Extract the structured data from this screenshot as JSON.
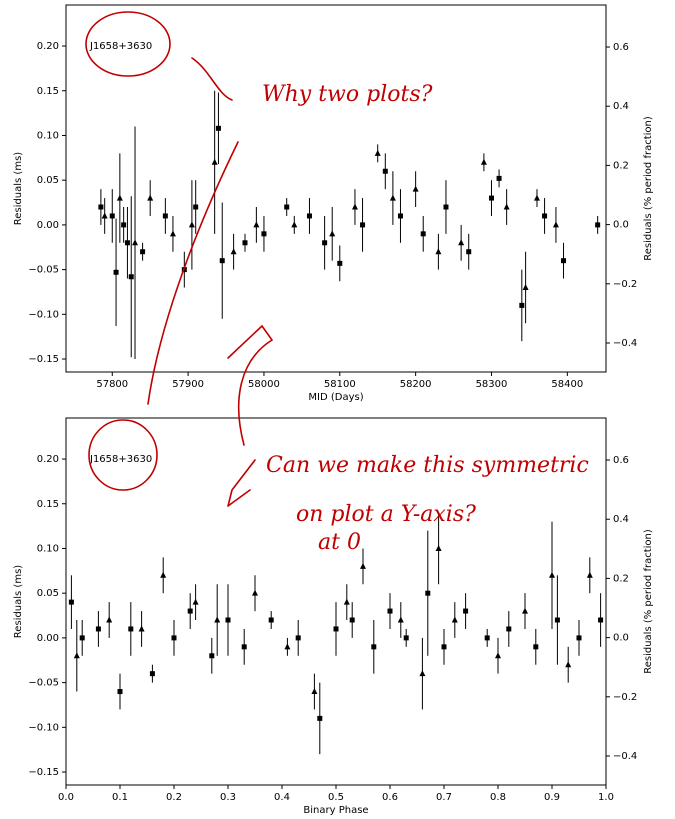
{
  "chart_data": [
    {
      "type": "scatter",
      "annotation": "J1658+3630",
      "xlabel": "MID (Days)",
      "ylabel": "Residuals (ms)",
      "y2label": "Residuals (% period fraction)",
      "xlim": [
        57739,
        58451
      ],
      "ylim": [
        -0.1645,
        0.2459
      ],
      "y2lim": [
        -0.498,
        0.742
      ],
      "xticks": [
        57800,
        57900,
        58000,
        58100,
        58200,
        58300,
        58400
      ],
      "yticks": [
        {
          "value": 0.2,
          "label": "0.20"
        },
        {
          "value": 0.15,
          "label": "0.15"
        },
        {
          "value": 0.1,
          "label": "0.10"
        },
        {
          "value": 0.05,
          "label": "0.05"
        },
        {
          "value": 0,
          "label": "0.00"
        },
        {
          "value": -0.05,
          "label": "−0.05"
        },
        {
          "value": -0.1,
          "label": "−0.10"
        },
        {
          "value": -0.15,
          "label": "−0.15"
        }
      ],
      "y2ticks": [
        {
          "value": 0.6,
          "label": "0.6"
        },
        {
          "value": 0.4,
          "label": "0.4"
        },
        {
          "value": 0.2,
          "label": "0.2"
        },
        {
          "value": 0,
          "label": "0.0"
        },
        {
          "value": -0.2,
          "label": "−0.2"
        },
        {
          "value": -0.4,
          "label": "−0.4"
        }
      ],
      "series": [
        {
          "marker": "square",
          "color": "#000000",
          "x": [
            57785,
            57800,
            57805,
            57815,
            57820,
            57825,
            57840,
            57870,
            57895,
            57910,
            57940,
            57945,
            57975,
            58000,
            58030,
            58060,
            58080,
            58100,
            58130,
            58160,
            58180,
            58210,
            58240,
            58270,
            58300,
            58310,
            58340,
            58370,
            58395,
            58440
          ],
          "values": [
            0.02,
            0.01,
            -0.053,
            0.0,
            -0.02,
            -0.058,
            -0.03,
            0.01,
            -0.05,
            0.02,
            0.108,
            -0.04,
            -0.02,
            -0.01,
            0.02,
            0.01,
            -0.02,
            -0.043,
            0.0,
            0.06,
            0.01,
            -0.01,
            0.02,
            -0.03,
            0.03,
            0.052,
            -0.09,
            0.01,
            -0.04,
            0.0
          ],
          "errors": [
            0.02,
            0.03,
            0.06,
            0.02,
            0.04,
            0.09,
            0.01,
            0.02,
            0.02,
            0.03,
            0.04,
            0.065,
            0.01,
            0.02,
            0.01,
            0.02,
            0.03,
            0.02,
            0.03,
            0.02,
            0.03,
            0.02,
            0.03,
            0.02,
            0.02,
            0.01,
            0.04,
            0.02,
            0.02,
            0.01
          ]
        },
        {
          "marker": "triangle",
          "color": "#000000",
          "x": [
            57790,
            57810,
            57830,
            57850,
            57880,
            57905,
            57935,
            57960,
            57990,
            58040,
            58090,
            58120,
            58150,
            58170,
            58200,
            58230,
            58260,
            58290,
            58320,
            58345,
            58360,
            58385
          ],
          "values": [
            0.01,
            0.03,
            -0.02,
            0.03,
            -0.01,
            0.0,
            0.07,
            -0.03,
            0.0,
            0.0,
            -0.01,
            0.02,
            0.08,
            0.03,
            0.04,
            -0.03,
            -0.02,
            0.07,
            0.02,
            -0.07,
            0.03,
            0.0
          ],
          "errors": [
            0.02,
            0.05,
            0.13,
            0.02,
            0.02,
            0.05,
            0.08,
            0.02,
            0.02,
            0.01,
            0.03,
            0.02,
            0.01,
            0.03,
            0.02,
            0.02,
            0.02,
            0.01,
            0.02,
            0.04,
            0.01,
            0.02
          ]
        }
      ]
    },
    {
      "type": "scatter",
      "annotation": "J1658+3630",
      "xlabel": "Binary Phase",
      "ylabel": "Residuals (ms)",
      "y2label": "Residuals (% period fraction)",
      "xlim": [
        0,
        1
      ],
      "ylim": [
        -0.1645,
        0.2459
      ],
      "y2lim": [
        -0.498,
        0.742
      ],
      "xticks": [
        {
          "value": 0,
          "label": "0.0"
        },
        0.1,
        0.2,
        0.3,
        0.4,
        0.5,
        0.6,
        0.7,
        0.8,
        0.9,
        {
          "value": 1,
          "label": "1.0"
        }
      ],
      "yticks": [
        {
          "value": 0.2,
          "label": "0.20"
        },
        {
          "value": 0.15,
          "label": "0.15"
        },
        {
          "value": 0.1,
          "label": "0.10"
        },
        {
          "value": 0.05,
          "label": "0.05"
        },
        {
          "value": 0,
          "label": "0.00"
        },
        {
          "value": -0.05,
          "label": "−0.05"
        },
        {
          "value": -0.1,
          "label": "−0.10"
        },
        {
          "value": -0.15,
          "label": "−0.15"
        }
      ],
      "y2ticks": [
        {
          "value": 0.6,
          "label": "0.6"
        },
        {
          "value": 0.4,
          "label": "0.4"
        },
        {
          "value": 0.2,
          "label": "0.2"
        },
        {
          "value": 0,
          "label": "0.0"
        },
        {
          "value": -0.2,
          "label": "−0.2"
        },
        {
          "value": -0.4,
          "label": "−0.4"
        }
      ],
      "series": [
        {
          "marker": "square",
          "color": "#000000",
          "x": [
            0.01,
            0.03,
            0.06,
            0.1,
            0.12,
            0.16,
            0.2,
            0.23,
            0.27,
            0.3,
            0.33,
            0.38,
            0.43,
            0.47,
            0.5,
            0.53,
            0.57,
            0.6,
            0.63,
            0.67,
            0.7,
            0.74,
            0.78,
            0.82,
            0.87,
            0.91,
            0.95,
            0.99
          ],
          "values": [
            0.04,
            0.0,
            0.01,
            -0.06,
            0.01,
            -0.04,
            0.0,
            0.03,
            -0.02,
            0.02,
            -0.01,
            0.02,
            0.0,
            -0.09,
            0.01,
            0.02,
            -0.01,
            0.03,
            0.0,
            0.05,
            -0.01,
            0.03,
            0.0,
            0.01,
            -0.01,
            0.02,
            0.0,
            0.02
          ],
          "errors": [
            0.03,
            0.02,
            0.02,
            0.02,
            0.03,
            0.01,
            0.02,
            0.02,
            0.02,
            0.04,
            0.02,
            0.01,
            0.02,
            0.04,
            0.03,
            0.02,
            0.03,
            0.02,
            0.01,
            0.07,
            0.02,
            0.02,
            0.01,
            0.02,
            0.02,
            0.05,
            0.02,
            0.03
          ]
        },
        {
          "marker": "triangle",
          "color": "#000000",
          "x": [
            0.02,
            0.08,
            0.14,
            0.18,
            0.24,
            0.28,
            0.35,
            0.41,
            0.46,
            0.52,
            0.55,
            0.62,
            0.66,
            0.69,
            0.72,
            0.8,
            0.85,
            0.9,
            0.93,
            0.97
          ],
          "values": [
            -0.02,
            0.02,
            0.01,
            0.07,
            0.04,
            0.02,
            0.05,
            -0.01,
            -0.06,
            0.04,
            0.08,
            0.02,
            -0.04,
            0.1,
            0.02,
            -0.02,
            0.03,
            0.07,
            -0.03,
            0.07
          ],
          "errors": [
            0.04,
            0.02,
            0.02,
            0.02,
            0.02,
            0.04,
            0.02,
            0.01,
            0.02,
            0.02,
            0.02,
            0.02,
            0.04,
            0.04,
            0.02,
            0.02,
            0.02,
            0.06,
            0.02,
            0.02
          ]
        }
      ]
    }
  ],
  "notes": [
    "Why two plots?",
    "Can we make this symmetric",
    "on plot a Y-axis?",
    "at 0"
  ]
}
